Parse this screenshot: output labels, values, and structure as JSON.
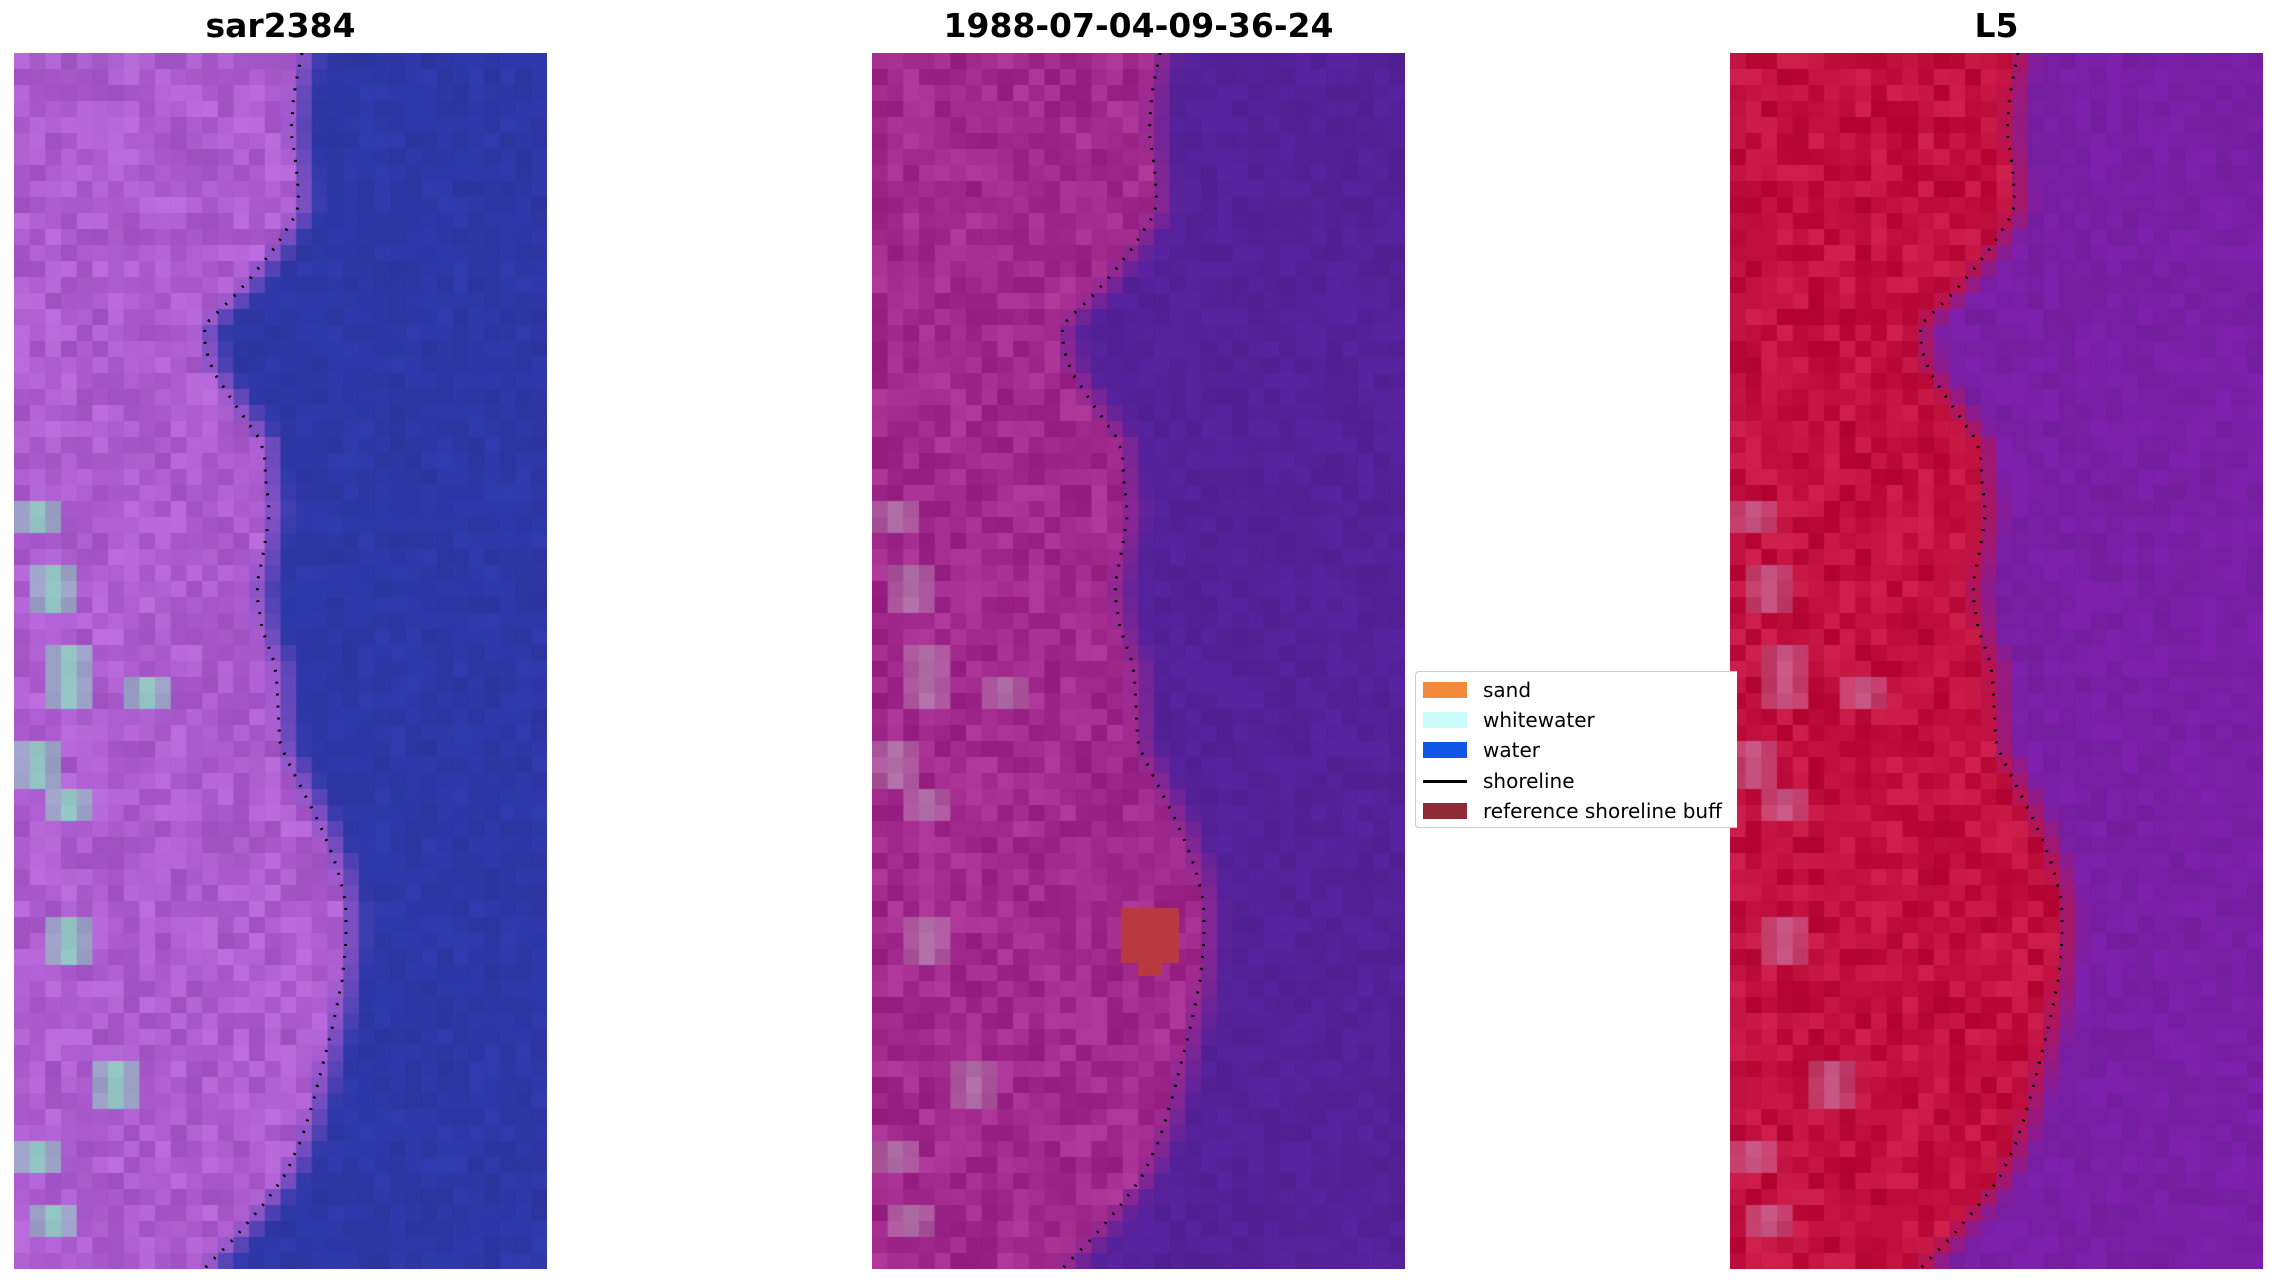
{
  "panels": [
    {
      "title": "sar2384"
    },
    {
      "title": "1988-07-04-09-36-24"
    },
    {
      "title": "L5"
    }
  ],
  "legend": {
    "items": [
      {
        "label": "sand",
        "color": "#f28a3c",
        "kind": "patch"
      },
      {
        "label": "whitewater",
        "color": "#c9fbfb",
        "kind": "patch"
      },
      {
        "label": "water",
        "color": "#1157e6",
        "kind": "patch"
      },
      {
        "label": "shoreline",
        "color": "#000000",
        "kind": "line"
      },
      {
        "label": "reference shoreline buff",
        "color": "#8f2b36",
        "kind": "patch"
      }
    ]
  },
  "colors": {
    "rgb_land": "#b05fd3",
    "rgb_water": "#2f38a8",
    "classified_land": "#a52a8f",
    "classified_water": "#55219a",
    "nir_land": "#c4113f",
    "nir_water": "#7a1fa7",
    "vegetation_patch": "#8be7c0"
  }
}
